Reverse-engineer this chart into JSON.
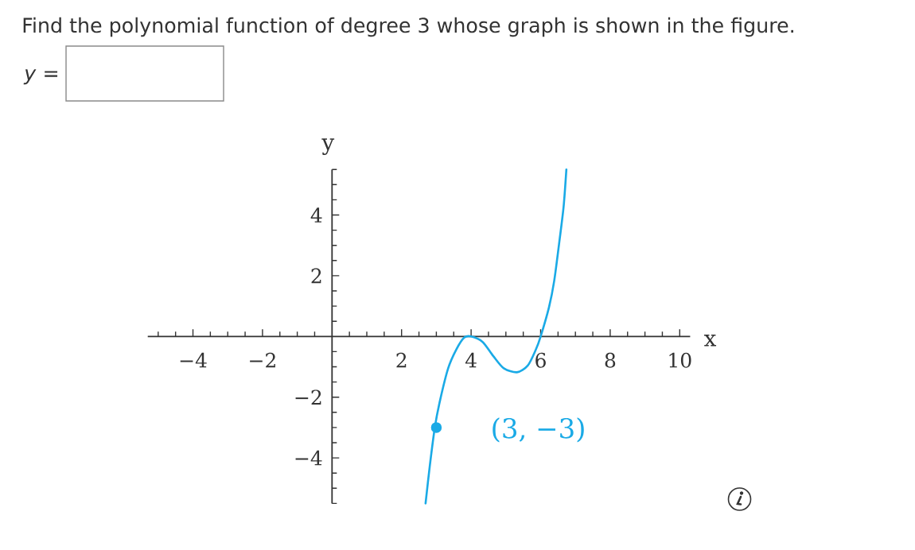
{
  "chart_data": {
    "type": "line",
    "title": "Find the polynomial function of degree 3 whose graph is shown in the figure.",
    "xlabel": "x",
    "ylabel": "y",
    "annotations": [
      "*y* =",
      {
        "text": "(3, −3)",
        "x": 3,
        "y": -3
      }
    ],
    "series": [
      {
        "color": "#1aaae6",
        "x": [
          2.69,
          2.81,
          2.96,
          3.11,
          3.34,
          3.57,
          3.8,
          4.0,
          4.33,
          4.64,
          4.94,
          5.32,
          5.63,
          5.86,
          6.0,
          6.24,
          6.39,
          6.54,
          6.66,
          6.74
        ],
        "values": [
          -5.5,
          -4.28,
          -2.97,
          -2.09,
          -1.05,
          -0.44,
          -0.04,
          0,
          -0.18,
          -0.65,
          -1.05,
          -1.18,
          -0.96,
          -0.44,
          0,
          0.96,
          1.83,
          3.14,
          4.27,
          5.5
        ]
      },
      {
        "type": "scatter",
        "color": "#1aaae6",
        "x": [
          3
        ],
        "values": [
          -3
        ]
      }
    ],
    "xlim": [
      -5.3,
      10.3
    ],
    "ylim": [
      -5.5,
      5.5
    ],
    "xticks": [
      {
        "value": -5,
        "label": null
      },
      {
        "value": -4.5,
        "label": null
      },
      {
        "value": -4,
        "label": "−4"
      },
      {
        "value": -3.5,
        "label": null
      },
      {
        "value": -3,
        "label": null
      },
      {
        "value": -2.5,
        "label": null
      },
      {
        "value": -2,
        "label": "−2"
      },
      {
        "value": -1.5,
        "label": null
      },
      {
        "value": -1,
        "label": null
      },
      {
        "value": -0.5,
        "label": null
      },
      {
        "value": 0.5,
        "label": null
      },
      {
        "value": 1,
        "label": null
      },
      {
        "value": 1.5,
        "label": null
      },
      2,
      {
        "value": 2.5,
        "label": null
      },
      {
        "value": 3,
        "label": null
      },
      {
        "value": 3.5,
        "label": null
      },
      4,
      {
        "value": 4.5,
        "label": null
      },
      {
        "value": 5,
        "label": null
      },
      {
        "value": 5.5,
        "label": null
      },
      6,
      {
        "value": 6.5,
        "label": null
      },
      {
        "value": 7,
        "label": null
      },
      {
        "value": 7.5,
        "label": null
      },
      8,
      {
        "value": 8.5,
        "label": null
      },
      {
        "value": 9,
        "label": null
      },
      {
        "value": 9.5,
        "label": null
      },
      10
    ],
    "yticks": [
      {
        "value": -5.5,
        "label": null
      },
      {
        "value": -5,
        "label": null
      },
      {
        "value": -4.5,
        "label": null
      },
      {
        "value": -4,
        "label": "−4"
      },
      {
        "value": -3.5,
        "label": null
      },
      {
        "value": -3,
        "label": null
      },
      {
        "value": -2.5,
        "label": null
      },
      {
        "value": -2,
        "label": "−2"
      },
      {
        "value": -1.5,
        "label": null
      },
      {
        "value": -1,
        "label": null
      },
      {
        "value": -0.5,
        "label": null
      },
      {
        "value": 0.5,
        "label": null
      },
      {
        "value": 1,
        "label": null
      },
      {
        "value": 1.5,
        "label": null
      },
      2,
      {
        "value": 2.5,
        "label": null
      },
      {
        "value": 3,
        "label": null
      },
      {
        "value": 3.5,
        "label": null
      },
      4,
      {
        "value": 4.5,
        "label": null
      },
      {
        "value": 5,
        "label": null
      },
      {
        "value": 5.5,
        "label": null
      }
    ]
  }
}
